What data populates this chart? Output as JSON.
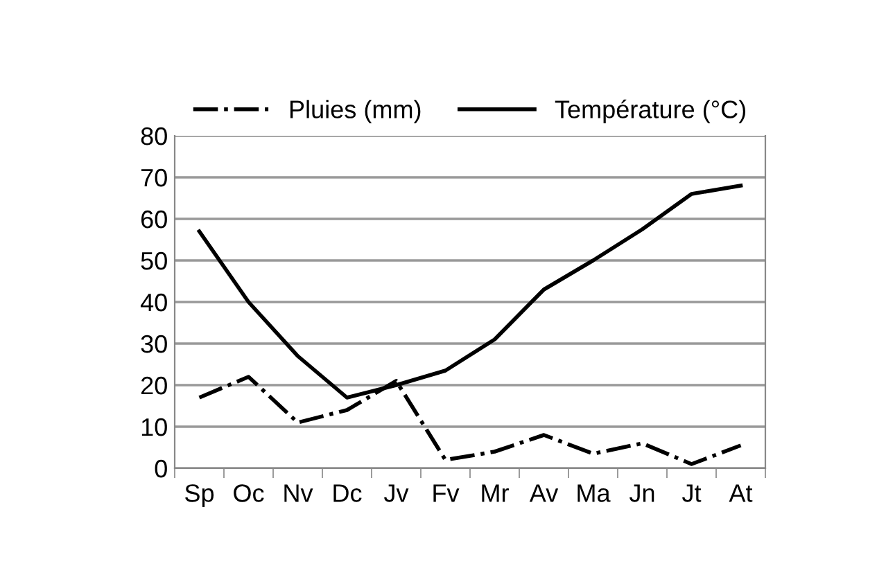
{
  "chart_data": {
    "type": "line",
    "categories": [
      "Sp",
      "Oc",
      "Nv",
      "Dc",
      "Jv",
      "Fv",
      "Mr",
      "Av",
      "Ma",
      "Jn",
      "Jt",
      "At"
    ],
    "series": [
      {
        "name": "Pluies (mm)",
        "color": "#000000",
        "line_style": "dashdot",
        "values": [
          17,
          22,
          11,
          14,
          21,
          2,
          4,
          8,
          3.5,
          6,
          1,
          5.5
        ]
      },
      {
        "name": "Température (°C)",
        "color": "#000000",
        "line_style": "solid",
        "values": [
          57,
          40,
          27,
          17,
          20,
          23.5,
          31,
          43,
          50,
          57.5,
          66,
          68
        ]
      }
    ],
    "ylim": [
      0,
      80
    ],
    "yticks": [
      0,
      10,
      20,
      30,
      40,
      50,
      60,
      70,
      80
    ],
    "grid": "y",
    "legend": "top",
    "marker": "none"
  }
}
